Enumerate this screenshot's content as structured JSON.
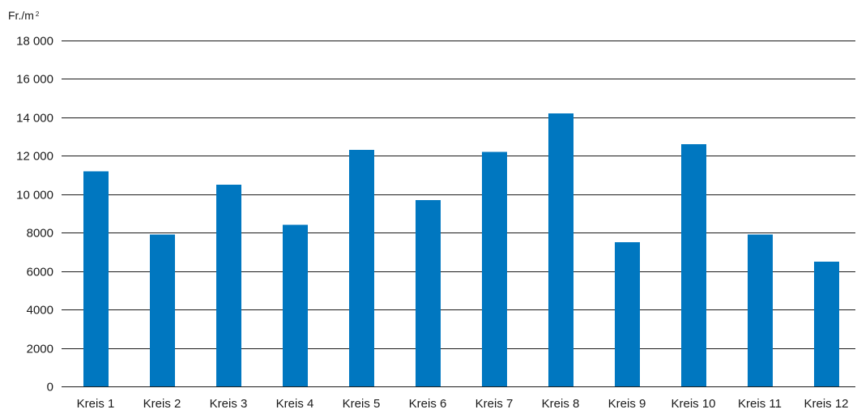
{
  "chart_data": {
    "type": "bar",
    "title": "",
    "xlabel": "",
    "ylabel": "Fr./m²",
    "ylim": [
      0,
      18000
    ],
    "y_ticks": [
      0,
      2000,
      4000,
      6000,
      8000,
      10000,
      12000,
      14000,
      16000,
      18000
    ],
    "y_tick_labels": [
      "0",
      "2000",
      "4000",
      "6000",
      "8000",
      "10 000",
      "12 000",
      "14 000",
      "16 000",
      "18 000"
    ],
    "grid": true,
    "legend": "none",
    "categories": [
      "Kreis 1",
      "Kreis 2",
      "Kreis 3",
      "Kreis 4",
      "Kreis 5",
      "Kreis 6",
      "Kreis 7",
      "Kreis 8",
      "Kreis 9",
      "Kreis 10",
      "Kreis 11",
      "Kreis 12"
    ],
    "values": [
      11200,
      7900,
      10500,
      8400,
      12300,
      9700,
      12200,
      14200,
      7500,
      12600,
      7900,
      6500
    ],
    "bar_color": "#0077c0"
  }
}
